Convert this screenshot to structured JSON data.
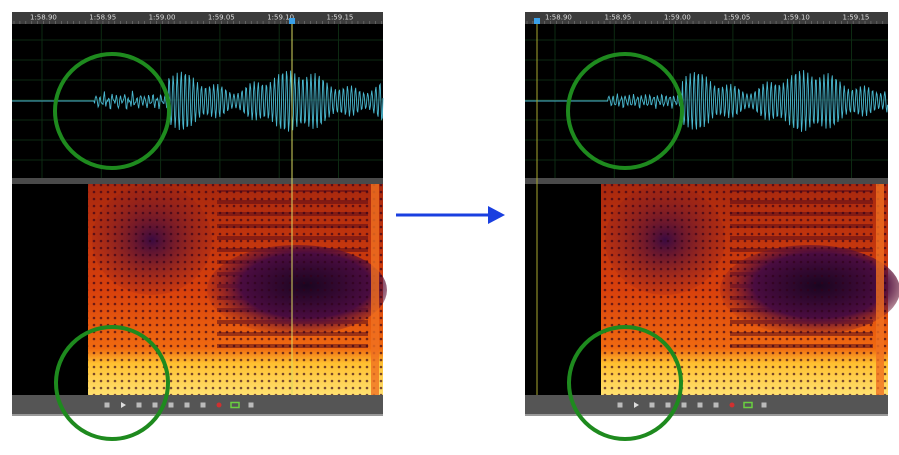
{
  "panels": [
    {
      "ruler": [
        "1:58.90",
        "1:58.95",
        "1:59.00",
        "1:59.05",
        "1:59.10",
        "1:59.15"
      ]
    },
    {
      "ruler": [
        "1:58.90",
        "1:58.95",
        "1:59.00",
        "1:59.05",
        "1:59.10",
        "1:59.15"
      ]
    }
  ]
}
